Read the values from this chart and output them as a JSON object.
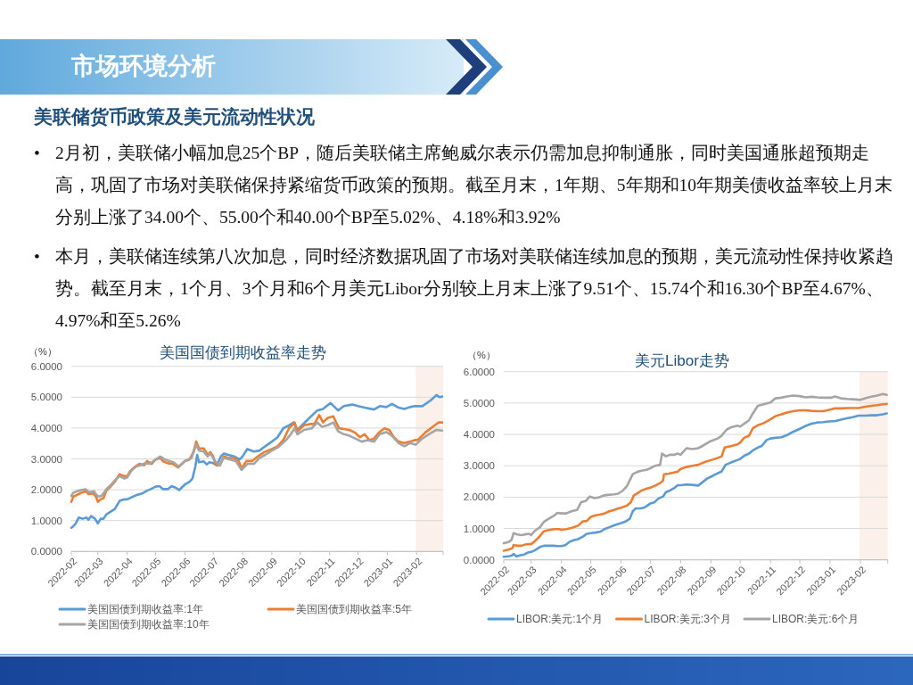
{
  "chart_data": [
    {
      "type": "other",
      "title": "市场环境分析",
      "subtitle": "美联储货币政策及美元流动性状况",
      "annotations": [
        "• 2月初，美联储小幅加息25个BP，随后美联储主席鲍威尔表示仍需加息抑制通胀，同时美国通胀超预期走高，巩固了市场对美联储保持紧缩货币政策的预期。截至月末，1年期、5年期和10年期美债收益率较上月末分别上涨了34.00个、55.00个和40.00个BP至5.02%、4.18%和3.92%",
        "• 本月，美联储连续第八次加息，同时经济数据巩固了市场对美联储连续加息的预期，美元流动性保持收紧趋势。截至月末，1个月、3个月和6个月美元Libor分别较上月末上涨了9.51个、15.74个和16.30个BP至4.67%、4.97%和至5.26%"
      ]
    },
    {
      "type": "line",
      "title": "美国国债到期收益率走势",
      "ylabel": "（%）",
      "xlim": [
        "2022-02-01",
        "2023-03-01"
      ],
      "ylim": [
        0,
        6
      ],
      "xticks": [
        "2022-02",
        "2022-03",
        "2022-04",
        "2022-05",
        "2022-06",
        "2022-07",
        "2022-08",
        "2022-09",
        "2022-10",
        "2022-11",
        "2022-12",
        "2023-01",
        "2023-02",
        {
          "value": "2023-03",
          "label": null
        }
      ],
      "yticks": [
        {
          "value": 0,
          "label": "0.0000"
        },
        {
          "value": 1,
          "label": "1.0000"
        },
        {
          "value": 2,
          "label": "2.0000"
        },
        {
          "value": 3,
          "label": "3.0000"
        },
        {
          "value": 4,
          "label": "4.0000"
        },
        {
          "value": 5,
          "label": "5.0000"
        },
        {
          "value": 6,
          "label": "6.0000"
        }
      ],
      "grid": "y",
      "legend": "bottom",
      "bands": [
        {
          "axis": "x",
          "from": "2023-01-31",
          "to": "2023-03-01",
          "color": "#fcf1ea"
        }
      ],
      "series": [
        {
          "name": "美国国债到期收益率:1年",
          "color": "#5b9bd5",
          "x": [
            "2022-02-01",
            "2022-02-03",
            "2022-02-05",
            "2022-02-09",
            "2022-02-13",
            "2022-02-17",
            "2022-02-19",
            "2022-02-22",
            "2022-02-26",
            "2022-03-01",
            "2022-03-04",
            "2022-03-07",
            "2022-03-10",
            "2022-03-15",
            "2022-03-19",
            "2022-03-24",
            "2022-03-29",
            "2022-04-01",
            "2022-04-04",
            "2022-04-11",
            "2022-04-17",
            "2022-04-22",
            "2022-04-26",
            "2022-05-01",
            "2022-05-05",
            "2022-05-09",
            "2022-05-14",
            "2022-05-18",
            "2022-05-22",
            "2022-05-26",
            "2022-06-01",
            "2022-06-06",
            "2022-06-09",
            "2022-06-12",
            "2022-06-14",
            "2022-06-16",
            "2022-06-21",
            "2022-06-24",
            "2022-06-27",
            "2022-07-01",
            "2022-07-05",
            "2022-07-09",
            "2022-07-12",
            "2022-07-17",
            "2022-07-23",
            "2022-07-29",
            "2022-08-01",
            "2022-08-06",
            "2022-08-13",
            "2022-08-19",
            "2022-08-25",
            "2022-09-01",
            "2022-09-07",
            "2022-09-13",
            "2022-09-19",
            "2022-09-24",
            "2022-09-28",
            "2022-10-09",
            "2022-10-19",
            "2022-10-25",
            "2022-11-02",
            "2022-11-10",
            "2022-11-16",
            "2022-11-25",
            "2022-12-01",
            "2022-12-08",
            "2022-12-18",
            "2022-12-24",
            "2022-12-31",
            "2023-01-06",
            "2023-01-13",
            "2023-01-19",
            "2023-01-25",
            "2023-01-30",
            "2023-02-07",
            "2023-02-16",
            "2023-02-22",
            "2023-02-25",
            "2023-02-28"
          ],
          "values": [
            0.77,
            0.82,
            0.88,
            1.1,
            1.06,
            1.1,
            1.03,
            1.15,
            1.06,
            0.91,
            1.06,
            1.06,
            1.2,
            1.3,
            1.38,
            1.64,
            1.69,
            1.69,
            1.73,
            1.83,
            1.88,
            1.97,
            2.02,
            2.1,
            2.12,
            2.02,
            2.02,
            2.12,
            2.07,
            1.99,
            2.17,
            2.26,
            2.36,
            2.74,
            3.13,
            2.89,
            2.92,
            2.82,
            2.89,
            2.86,
            2.79,
            3.08,
            3.17,
            3.13,
            3.08,
            2.98,
            3.08,
            3.32,
            3.24,
            3.27,
            3.41,
            3.56,
            3.7,
            3.99,
            4.09,
            4.18,
            3.94,
            4.28,
            4.57,
            4.62,
            4.81,
            4.57,
            4.71,
            4.76,
            4.71,
            4.66,
            4.6,
            4.71,
            4.68,
            4.78,
            4.66,
            4.62,
            4.68,
            4.71,
            4.71,
            4.9,
            5.07,
            5.0,
            5.02
          ]
        },
        {
          "name": "美国国债到期收益率:5年",
          "color": "#ed7d31",
          "x": [
            "2022-02-01",
            "2022-02-03",
            "2022-02-07",
            "2022-02-10",
            "2022-02-13",
            "2022-02-17",
            "2022-02-19",
            "2022-02-24",
            "2022-02-27",
            "2022-03-01",
            "2022-03-04",
            "2022-03-07",
            "2022-03-10",
            "2022-03-15",
            "2022-03-19",
            "2022-03-24",
            "2022-03-29",
            "2022-04-01",
            "2022-04-04",
            "2022-04-09",
            "2022-04-14",
            "2022-04-19",
            "2022-04-22",
            "2022-04-27",
            "2022-05-01",
            "2022-05-06",
            "2022-05-09",
            "2022-05-14",
            "2022-05-19",
            "2022-05-25",
            "2022-05-29",
            "2022-06-01",
            "2022-06-06",
            "2022-06-10",
            "2022-06-13",
            "2022-06-16",
            "2022-06-21",
            "2022-06-25",
            "2022-06-28",
            "2022-07-01",
            "2022-07-03",
            "2022-07-08",
            "2022-07-12",
            "2022-07-17",
            "2022-07-23",
            "2022-07-28",
            "2022-07-31",
            "2022-08-05",
            "2022-08-11",
            "2022-08-17",
            "2022-08-24",
            "2022-09-01",
            "2022-09-07",
            "2022-09-13",
            "2022-09-19",
            "2022-09-25",
            "2022-09-28",
            "2022-10-05",
            "2022-10-11",
            "2022-10-16",
            "2022-10-21",
            "2022-10-25",
            "2022-10-30",
            "2022-11-05",
            "2022-11-08",
            "2022-11-11",
            "2022-11-16",
            "2022-11-22",
            "2022-11-28",
            "2022-12-03",
            "2022-12-08",
            "2022-12-13",
            "2022-12-18",
            "2022-12-23",
            "2022-12-29",
            "2023-01-03",
            "2023-01-08",
            "2023-01-13",
            "2023-01-19",
            "2023-01-25",
            "2023-01-30",
            "2023-02-02",
            "2023-02-10",
            "2023-02-18",
            "2023-02-24",
            "2023-02-28"
          ],
          "values": [
            1.61,
            1.78,
            1.83,
            1.88,
            1.92,
            1.95,
            1.86,
            1.88,
            1.78,
            1.61,
            1.69,
            1.73,
            1.97,
            2.12,
            2.26,
            2.5,
            2.44,
            2.44,
            2.6,
            2.74,
            2.84,
            2.79,
            2.93,
            2.84,
            2.98,
            3.03,
            2.92,
            2.86,
            2.84,
            2.72,
            2.84,
            2.93,
            2.98,
            3.22,
            3.56,
            3.34,
            3.34,
            3.13,
            3.22,
            3.08,
            2.84,
            2.79,
            3.08,
            3.03,
            3.03,
            2.92,
            2.69,
            2.93,
            2.93,
            3.08,
            3.22,
            3.32,
            3.41,
            3.61,
            3.99,
            4.18,
            3.89,
            4.09,
            4.13,
            4.13,
            4.42,
            4.18,
            4.33,
            4.38,
            4.18,
            3.99,
            3.97,
            3.94,
            3.85,
            3.7,
            3.8,
            3.61,
            3.66,
            3.85,
            3.99,
            3.94,
            3.7,
            3.56,
            3.51,
            3.56,
            3.61,
            3.61,
            3.85,
            4.04,
            4.18,
            4.18
          ]
        },
        {
          "name": "美国国债到期收益率:10年",
          "color": "#a5a5a5",
          "x": [
            "2022-02-01",
            "2022-02-03",
            "2022-02-07",
            "2022-02-11",
            "2022-02-16",
            "2022-02-20",
            "2022-02-25",
            "2022-03-01",
            "2022-03-05",
            "2022-03-10",
            "2022-03-15",
            "2022-03-19",
            "2022-03-24",
            "2022-03-29",
            "2022-04-01",
            "2022-04-06",
            "2022-04-11",
            "2022-04-15",
            "2022-04-20",
            "2022-04-25",
            "2022-05-01",
            "2022-05-06",
            "2022-05-11",
            "2022-05-16",
            "2022-05-20",
            "2022-05-25",
            "2022-05-29",
            "2022-06-01",
            "2022-06-08",
            "2022-06-13",
            "2022-06-16",
            "2022-06-21",
            "2022-06-25",
            "2022-06-28",
            "2022-07-03",
            "2022-07-08",
            "2022-07-12",
            "2022-07-19",
            "2022-07-25",
            "2022-07-29",
            "2022-07-31",
            "2022-08-06",
            "2022-08-13",
            "2022-08-19",
            "2022-08-25",
            "2022-09-01",
            "2022-09-08",
            "2022-09-16",
            "2022-09-21",
            "2022-09-25",
            "2022-09-28",
            "2022-10-05",
            "2022-10-13",
            "2022-10-19",
            "2022-10-24",
            "2022-10-30",
            "2022-11-05",
            "2022-11-10",
            "2022-11-16",
            "2022-11-22",
            "2022-11-28",
            "2022-12-05",
            "2022-12-11",
            "2022-12-18",
            "2022-12-24",
            "2022-12-31",
            "2023-01-06",
            "2023-01-13",
            "2023-01-19",
            "2023-01-25",
            "2023-01-31",
            "2023-02-07",
            "2023-02-14",
            "2023-02-22",
            "2023-02-28"
          ],
          "values": [
            1.8,
            1.9,
            1.95,
            1.99,
            2.02,
            1.92,
            1.95,
            1.78,
            1.8,
            2.02,
            2.16,
            2.31,
            2.44,
            2.36,
            2.4,
            2.64,
            2.76,
            2.79,
            2.86,
            2.84,
            2.98,
            3.08,
            2.98,
            2.93,
            2.89,
            2.76,
            2.84,
            2.93,
            3.03,
            3.46,
            3.27,
            3.24,
            3.08,
            3.17,
            2.93,
            2.79,
            3.03,
            2.98,
            2.93,
            2.74,
            2.64,
            2.84,
            2.84,
            3.03,
            3.13,
            3.27,
            3.39,
            3.61,
            3.8,
            3.99,
            3.8,
            3.94,
            3.99,
            4.18,
            4.04,
            4.09,
            4.18,
            3.89,
            3.8,
            3.75,
            3.66,
            3.56,
            3.61,
            3.56,
            3.8,
            3.87,
            3.75,
            3.51,
            3.41,
            3.51,
            3.46,
            3.66,
            3.8,
            3.94,
            3.92
          ]
        }
      ]
    },
    {
      "type": "line",
      "title": "美元Libor走势",
      "ylabel": "（%）",
      "xlim": [
        "2022-02-01",
        "2023-03-01"
      ],
      "ylim": [
        0,
        6
      ],
      "xticks": [
        "2022-02",
        "2022-03",
        "2022-04",
        "2022-05",
        "2022-06",
        "2022-07",
        "2022-08",
        "2022-09",
        "2022-10",
        "2022-11",
        "2022-12",
        "2023-01",
        "2023-02",
        {
          "value": "2023-03",
          "label": null
        }
      ],
      "yticks": [
        {
          "value": 0,
          "label": "0.0000"
        },
        {
          "value": 1,
          "label": "1.0000"
        },
        {
          "value": 2,
          "label": "2.0000"
        },
        {
          "value": 3,
          "label": "3.0000"
        },
        {
          "value": 4,
          "label": "4.0000"
        },
        {
          "value": 5,
          "label": "5.0000"
        },
        {
          "value": 6,
          "label": "6.0000"
        }
      ],
      "grid": "y",
      "legend": "bottom",
      "bands": [
        {
          "axis": "x",
          "from": "2023-01-31",
          "to": "2023-03-01",
          "color": "#fcf1ea"
        }
      ],
      "series": [
        {
          "name": "LIBOR:美元:1个月",
          "color": "#5b9bd5",
          "x": [
            "2022-02-01",
            "2022-02-07",
            "2022-02-10",
            "2022-02-11",
            "2022-02-14",
            "2022-02-18",
            "2022-02-22",
            "2022-02-26",
            "2022-03-01",
            "2022-03-05",
            "2022-03-10",
            "2022-03-14",
            "2022-03-19",
            "2022-03-24",
            "2022-03-28",
            "2022-04-01",
            "2022-04-05",
            "2022-04-09",
            "2022-04-14",
            "2022-04-18",
            "2022-04-23",
            "2022-04-27",
            "2022-05-01",
            "2022-05-06",
            "2022-05-11",
            "2022-05-15",
            "2022-05-20",
            "2022-05-25",
            "2022-05-29",
            "2022-06-01",
            "2022-06-06",
            "2022-06-10",
            "2022-06-13",
            "2022-06-16",
            "2022-06-21",
            "2022-06-25",
            "2022-06-28",
            "2022-07-01",
            "2022-07-05",
            "2022-07-09",
            "2022-07-14",
            "2022-07-17",
            "2022-07-21",
            "2022-07-26",
            "2022-07-29",
            "2022-08-01",
            "2022-08-07",
            "2022-08-13",
            "2022-08-19",
            "2022-08-24",
            "2022-08-28",
            "2022-09-01",
            "2022-09-06",
            "2022-09-12",
            "2022-09-16",
            "2022-09-22",
            "2022-09-28",
            "2022-10-01",
            "2022-10-05",
            "2022-10-10",
            "2022-10-14",
            "2022-10-19",
            "2022-10-23",
            "2022-10-28",
            "2022-11-01",
            "2022-11-06",
            "2022-11-12",
            "2022-11-18",
            "2022-11-24",
            "2022-12-01",
            "2022-12-07",
            "2022-12-13",
            "2022-12-19",
            "2022-12-25",
            "2023-01-02",
            "2023-01-06",
            "2023-01-12",
            "2023-01-18",
            "2023-01-24",
            "2023-01-30",
            "2023-02-06",
            "2023-02-12",
            "2023-02-18",
            "2023-02-24",
            "2023-02-28"
          ],
          "values": [
            0.1,
            0.12,
            0.15,
            0.19,
            0.11,
            0.15,
            0.17,
            0.24,
            0.25,
            0.31,
            0.41,
            0.45,
            0.45,
            0.45,
            0.44,
            0.44,
            0.47,
            0.57,
            0.63,
            0.66,
            0.74,
            0.83,
            0.85,
            0.87,
            0.9,
            0.98,
            1.04,
            1.1,
            1.14,
            1.17,
            1.23,
            1.31,
            1.55,
            1.64,
            1.64,
            1.67,
            1.73,
            1.8,
            1.83,
            1.95,
            2.02,
            2.16,
            2.21,
            2.3,
            2.38,
            2.38,
            2.4,
            2.39,
            2.37,
            2.49,
            2.59,
            2.65,
            2.73,
            2.82,
            3.03,
            3.11,
            3.18,
            3.22,
            3.32,
            3.39,
            3.49,
            3.58,
            3.63,
            3.82,
            3.87,
            3.89,
            3.91,
            3.98,
            4.08,
            4.18,
            4.27,
            4.34,
            4.38,
            4.39,
            4.42,
            4.42,
            4.47,
            4.51,
            4.55,
            4.6,
            4.6,
            4.61,
            4.61,
            4.64,
            4.67
          ]
        },
        {
          "name": "LIBOR:美元:3个月",
          "color": "#ed7d31",
          "x": [
            "2022-02-01",
            "2022-02-07",
            "2022-02-10",
            "2022-02-11",
            "2022-02-15",
            "2022-02-19",
            "2022-02-24",
            "2022-03-01",
            "2022-03-05",
            "2022-03-10",
            "2022-03-14",
            "2022-03-19",
            "2022-03-25",
            "2022-03-30",
            "2022-04-01",
            "2022-04-06",
            "2022-04-12",
            "2022-04-18",
            "2022-04-23",
            "2022-04-27",
            "2022-05-01",
            "2022-05-06",
            "2022-05-11",
            "2022-05-15",
            "2022-05-20",
            "2022-05-25",
            "2022-05-29",
            "2022-06-01",
            "2022-06-07",
            "2022-06-11",
            "2022-06-14",
            "2022-06-18",
            "2022-06-22",
            "2022-06-27",
            "2022-07-01",
            "2022-07-06",
            "2022-07-11",
            "2022-07-14",
            "2022-07-15",
            "2022-07-20",
            "2022-07-24",
            "2022-07-29",
            "2022-08-01",
            "2022-08-07",
            "2022-08-13",
            "2022-08-19",
            "2022-08-25",
            "2022-09-01",
            "2022-09-08",
            "2022-09-12",
            "2022-09-15",
            "2022-09-22",
            "2022-09-28",
            "2022-10-01",
            "2022-10-05",
            "2022-10-10",
            "2022-10-14",
            "2022-10-19",
            "2022-10-25",
            "2022-11-01",
            "2022-11-06",
            "2022-11-12",
            "2022-11-18",
            "2022-11-24",
            "2022-12-01",
            "2022-12-07",
            "2022-12-13",
            "2022-12-19",
            "2022-12-25",
            "2023-01-02",
            "2023-01-06",
            "2023-01-12",
            "2023-01-18",
            "2023-01-24",
            "2023-01-30",
            "2023-02-06",
            "2023-02-12",
            "2023-02-18",
            "2023-02-24",
            "2023-02-28"
          ],
          "values": [
            0.29,
            0.34,
            0.38,
            0.47,
            0.45,
            0.45,
            0.5,
            0.5,
            0.6,
            0.76,
            0.91,
            0.95,
            0.98,
            0.98,
            0.96,
            0.98,
            1.02,
            1.09,
            1.23,
            1.24,
            1.37,
            1.42,
            1.45,
            1.48,
            1.55,
            1.59,
            1.64,
            1.66,
            1.73,
            1.83,
            2.05,
            2.13,
            2.21,
            2.27,
            2.3,
            2.37,
            2.45,
            2.52,
            2.73,
            2.75,
            2.78,
            2.81,
            2.9,
            2.96,
            3.0,
            3.03,
            3.11,
            3.18,
            3.25,
            3.3,
            3.58,
            3.63,
            3.68,
            3.74,
            3.89,
            3.96,
            4.2,
            4.29,
            4.36,
            4.48,
            4.58,
            4.64,
            4.7,
            4.74,
            4.77,
            4.77,
            4.75,
            4.74,
            4.74,
            4.8,
            4.83,
            4.83,
            4.84,
            4.84,
            4.84,
            4.88,
            4.91,
            4.93,
            4.96,
            4.97
          ]
        },
        {
          "name": "LIBOR:美元:6个月",
          "color": "#a5a5a5",
          "x": [
            "2022-02-01",
            "2022-02-06",
            "2022-02-09",
            "2022-02-11",
            "2022-02-15",
            "2022-02-19",
            "2022-02-24",
            "2022-02-27",
            "2022-03-01",
            "2022-03-05",
            "2022-03-10",
            "2022-03-14",
            "2022-03-19",
            "2022-03-24",
            "2022-03-28",
            "2022-04-01",
            "2022-04-06",
            "2022-04-11",
            "2022-04-17",
            "2022-04-21",
            "2022-04-26",
            "2022-04-30",
            "2022-05-05",
            "2022-05-09",
            "2022-05-14",
            "2022-05-18",
            "2022-05-25",
            "2022-05-29",
            "2022-06-03",
            "2022-06-07",
            "2022-06-10",
            "2022-06-13",
            "2022-06-18",
            "2022-06-22",
            "2022-06-27",
            "2022-07-01",
            "2022-07-06",
            "2022-07-11",
            "2022-07-13",
            "2022-07-17",
            "2022-07-21",
            "2022-07-26",
            "2022-07-29",
            "2022-08-01",
            "2022-08-07",
            "2022-08-13",
            "2022-08-19",
            "2022-08-25",
            "2022-09-01",
            "2022-09-08",
            "2022-09-12",
            "2022-09-17",
            "2022-09-22",
            "2022-09-28",
            "2022-10-01",
            "2022-10-05",
            "2022-10-10",
            "2022-10-14",
            "2022-10-19",
            "2022-10-25",
            "2022-11-01",
            "2022-11-06",
            "2022-11-12",
            "2022-11-18",
            "2022-11-24",
            "2022-12-01",
            "2022-12-07",
            "2022-12-13",
            "2022-12-19",
            "2022-12-25",
            "2023-01-02",
            "2023-01-06",
            "2023-01-12",
            "2023-01-18",
            "2023-01-24",
            "2023-02-01",
            "2023-02-06",
            "2023-02-12",
            "2023-02-18",
            "2023-02-24",
            "2023-02-28"
          ],
          "values": [
            0.53,
            0.57,
            0.64,
            0.85,
            0.81,
            0.79,
            0.82,
            0.83,
            0.79,
            0.93,
            1.04,
            1.21,
            1.31,
            1.4,
            1.5,
            1.48,
            1.48,
            1.55,
            1.59,
            1.83,
            1.88,
            2.02,
            1.97,
            1.99,
            2.05,
            2.07,
            2.09,
            2.11,
            2.21,
            2.35,
            2.54,
            2.73,
            2.81,
            2.84,
            2.87,
            2.92,
            3.0,
            3.03,
            3.39,
            3.3,
            3.35,
            3.35,
            3.39,
            3.35,
            3.56,
            3.53,
            3.56,
            3.66,
            3.79,
            3.87,
            3.96,
            4.15,
            4.23,
            4.28,
            4.25,
            4.34,
            4.45,
            4.67,
            4.91,
            4.96,
            5.02,
            5.15,
            5.17,
            5.21,
            5.24,
            5.22,
            5.18,
            5.2,
            5.18,
            5.17,
            5.17,
            5.21,
            5.15,
            5.13,
            5.12,
            5.1,
            5.15,
            5.2,
            5.24,
            5.29,
            5.26
          ]
        }
      ]
    }
  ]
}
